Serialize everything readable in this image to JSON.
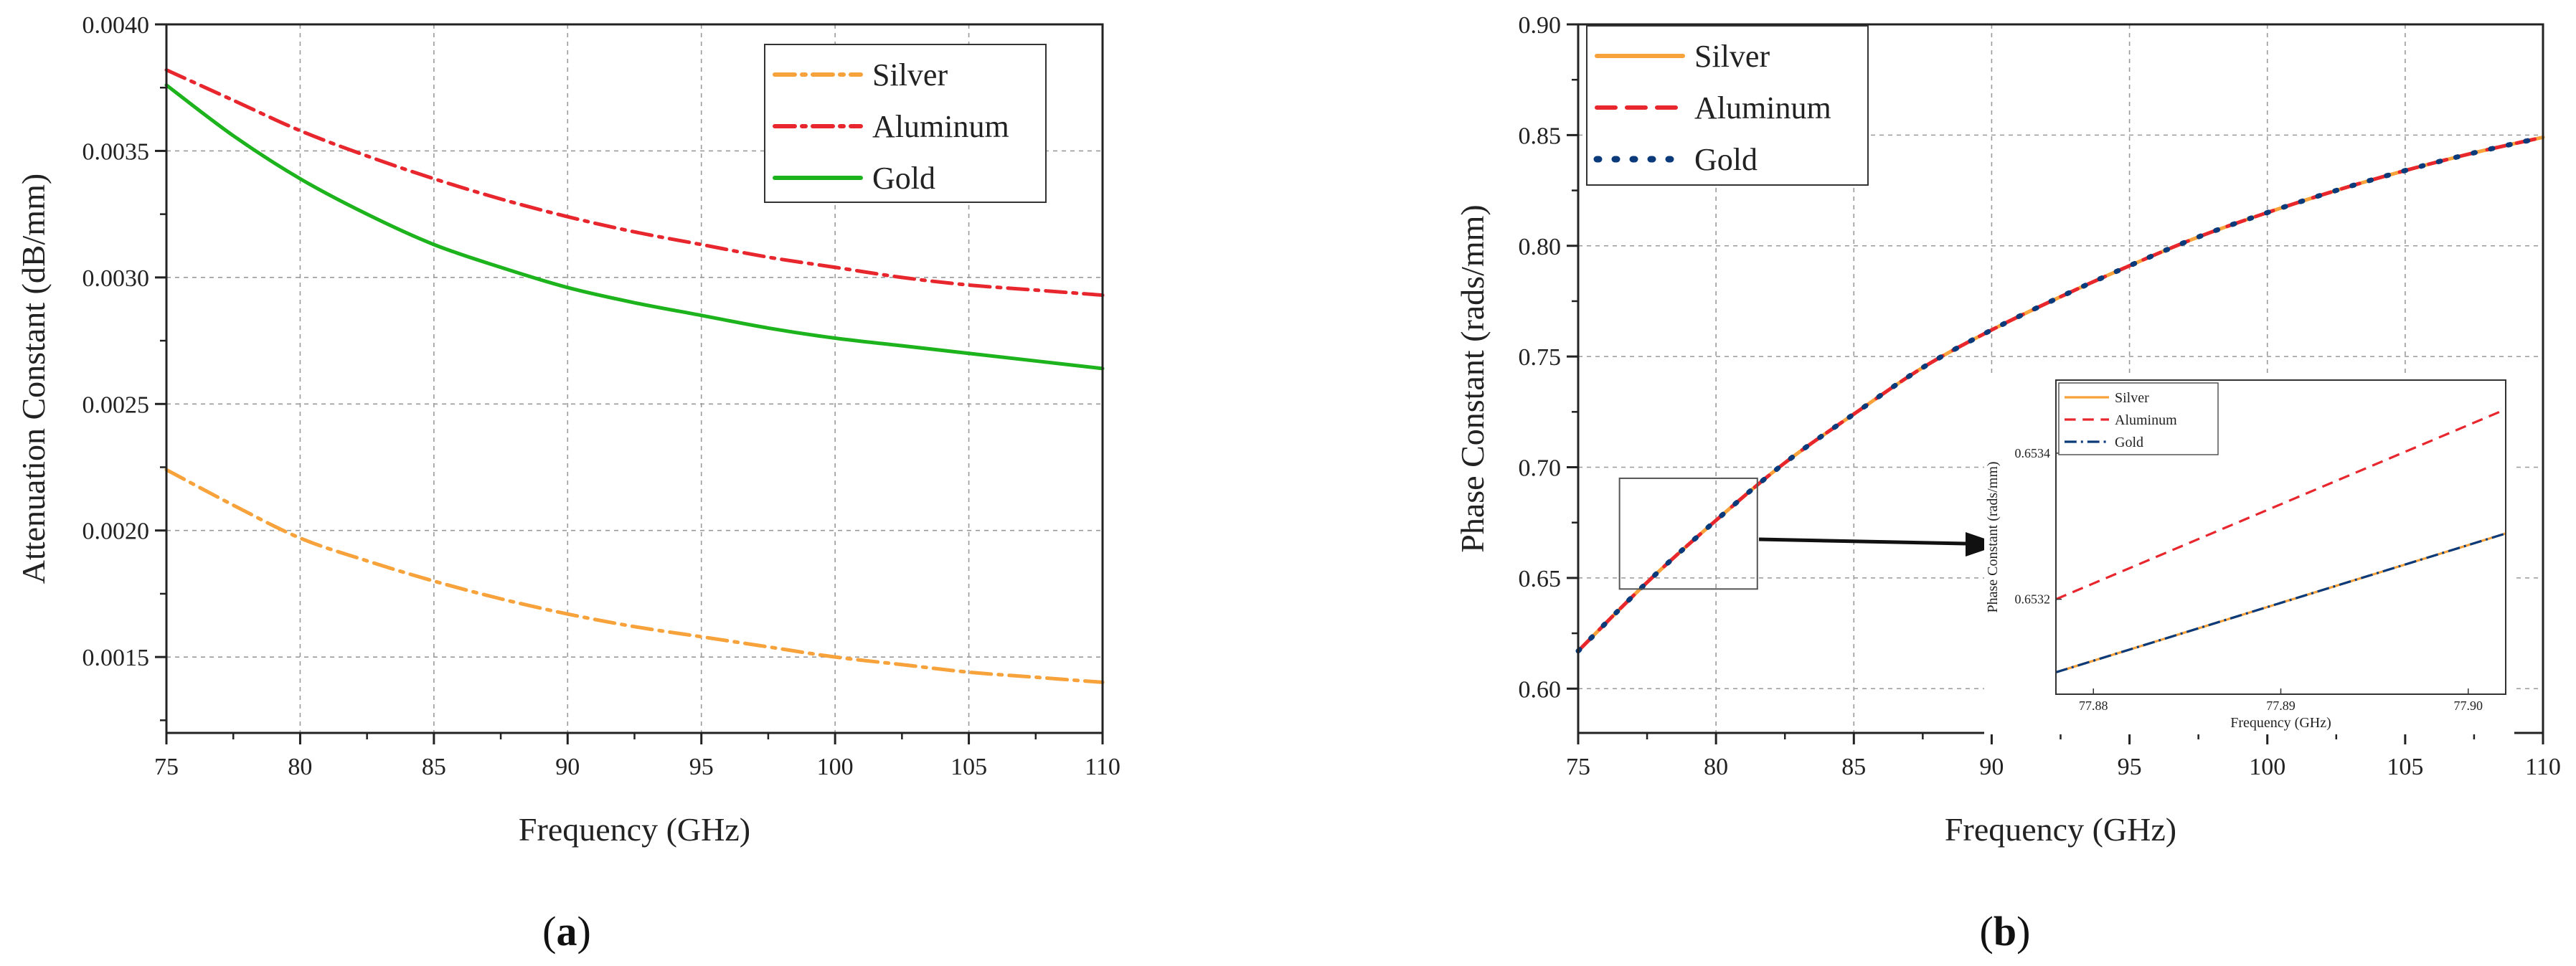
{
  "chart_data": [
    {
      "id": "a",
      "type": "line",
      "caption_letter": "a",
      "caption_open": "(",
      "caption_close": ")",
      "xlabel": "Frequency (GHz)",
      "ylabel": "Attenuation Constant (dB/mm)",
      "xlim": [
        75,
        110
      ],
      "ylim": [
        0.0012,
        0.004
      ],
      "xticks": [
        75,
        80,
        85,
        90,
        95,
        100,
        105,
        110
      ],
      "yticks": [
        0.0015,
        0.002,
        0.0025,
        0.003,
        0.0035,
        0.004
      ],
      "ytick_labels": [
        "0.0015",
        "0.0020",
        "0.0025",
        "0.0030",
        "0.0035",
        "0.0040"
      ],
      "grid": true,
      "legend_position": "top-right",
      "x": [
        75,
        77.5,
        80,
        82.5,
        85,
        87.5,
        90,
        92.5,
        95,
        97.5,
        100,
        102.5,
        105,
        107.5,
        110
      ],
      "series": [
        {
          "name": "Silver",
          "color": "#F7A23A",
          "dash": "dashdot",
          "values": [
            0.00224,
            0.0021,
            0.00197,
            0.00188,
            0.0018,
            0.00173,
            0.00167,
            0.00162,
            0.00158,
            0.00154,
            0.0015,
            0.00147,
            0.00144,
            0.00142,
            0.0014
          ]
        },
        {
          "name": "Aluminum",
          "color": "#E8262D",
          "dash": "dashdot",
          "values": [
            0.00382,
            0.0037,
            0.00358,
            0.00348,
            0.00339,
            0.00331,
            0.00324,
            0.00318,
            0.00313,
            0.00308,
            0.00304,
            0.003,
            0.00297,
            0.00295,
            0.00293
          ]
        },
        {
          "name": "Gold",
          "color": "#1DB31D",
          "dash": "solid",
          "values": [
            0.00376,
            0.00356,
            0.00339,
            0.00325,
            0.00313,
            0.00304,
            0.00296,
            0.0029,
            0.00285,
            0.0028,
            0.00276,
            0.00273,
            0.0027,
            0.00267,
            0.00264
          ]
        }
      ]
    },
    {
      "id": "b",
      "type": "line",
      "caption_letter": "b",
      "caption_open": "(",
      "caption_close": ")",
      "xlabel": "Frequency (GHz)",
      "ylabel": "Phase Constant (rads/mm)",
      "xlim": [
        75,
        110
      ],
      "ylim": [
        0.58,
        0.9
      ],
      "xticks": [
        75,
        80,
        85,
        90,
        95,
        100,
        105,
        110
      ],
      "yticks": [
        0.6,
        0.65,
        0.7,
        0.75,
        0.8,
        0.85,
        0.9
      ],
      "ytick_labels": [
        "0.60",
        "0.65",
        "0.70",
        "0.75",
        "0.80",
        "0.85",
        "0.90"
      ],
      "grid": true,
      "legend_position": "top-left",
      "x": [
        75,
        77.5,
        80,
        82.5,
        85,
        87.5,
        90,
        92.5,
        95,
        97.5,
        100,
        102.5,
        105,
        107.5,
        110
      ],
      "series": [
        {
          "name": "Silver",
          "color": "#F7A23A",
          "dash": "solid",
          "values": [
            0.617,
            0.648,
            0.676,
            0.702,
            0.724,
            0.745,
            0.762,
            0.777,
            0.791,
            0.804,
            0.815,
            0.825,
            0.834,
            0.842,
            0.849
          ]
        },
        {
          "name": "Aluminum",
          "color": "#E8262D",
          "dash": "dash",
          "values": [
            0.617,
            0.648,
            0.676,
            0.702,
            0.724,
            0.745,
            0.762,
            0.777,
            0.791,
            0.804,
            0.815,
            0.825,
            0.834,
            0.842,
            0.849
          ]
        },
        {
          "name": "Gold",
          "color": "#0B3A7A",
          "dash": "dot",
          "values": [
            0.617,
            0.648,
            0.676,
            0.702,
            0.724,
            0.745,
            0.762,
            0.777,
            0.791,
            0.804,
            0.815,
            0.825,
            0.834,
            0.842,
            0.849
          ]
        }
      ],
      "zoom_region": {
        "x": [
          76.5,
          81.5
        ],
        "y": [
          0.645,
          0.695
        ]
      },
      "inset": {
        "type": "line",
        "xlabel": "Frequency (GHz)",
        "ylabel": "Phase Constant (rads/mm)",
        "xlim": [
          77.878,
          77.902
        ],
        "ylim": [
          0.65307,
          0.6535
        ],
        "xticks": [
          77.88,
          77.89,
          77.9
        ],
        "xtick_labels": [
          "77.88",
          "77.89",
          "77.90"
        ],
        "yticks": [
          0.6532,
          0.6534
        ],
        "ytick_labels": [
          "0.6532",
          "0.6534"
        ],
        "legend_position": "top-left",
        "series": [
          {
            "name": "Silver",
            "color": "#F7A23A",
            "dash": "solid",
            "x": [
              77.878,
              77.902
            ],
            "values": [
              0.6531,
              0.65329
            ]
          },
          {
            "name": "Aluminum",
            "color": "#E8262D",
            "dash": "dash",
            "x": [
              77.878,
              77.902
            ],
            "values": [
              0.6532,
              0.65346
            ]
          },
          {
            "name": "Gold",
            "color": "#0B3A7A",
            "dash": "dashdot",
            "x": [
              77.878,
              77.902
            ],
            "values": [
              0.6531,
              0.65329
            ]
          }
        ]
      }
    }
  ]
}
